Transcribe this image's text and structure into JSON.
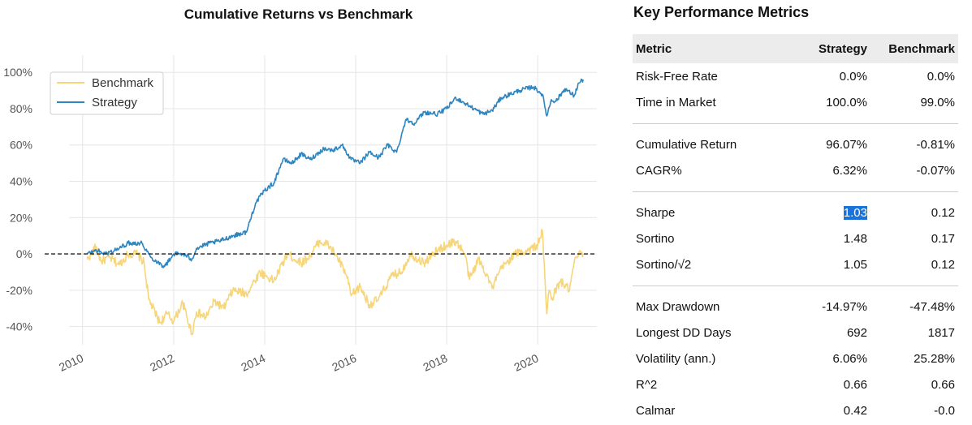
{
  "chart_data": {
    "type": "line",
    "title": "Cumulative Returns vs Benchmark",
    "x_ticks": [
      "2010",
      "2012",
      "2014",
      "2016",
      "2018",
      "2020"
    ],
    "y_ticks": [
      "100%",
      "80%",
      "60%",
      "40%",
      "20%",
      "0%",
      "-20%",
      "-40%"
    ],
    "ylim": [
      -0.5,
      1.05
    ],
    "xlim": [
      2009.7,
      2021.3
    ],
    "grid": true,
    "reference_line": 0,
    "legend_position": "top-left",
    "series": [
      {
        "name": "Benchmark",
        "color": "#f7d57a",
        "x": [
          2010.1,
          2010.3,
          2010.4,
          2010.6,
          2010.8,
          2011.0,
          2011.2,
          2011.35,
          2011.45,
          2011.7,
          2011.85,
          2012.0,
          2012.2,
          2012.4,
          2012.5,
          2012.7,
          2012.9,
          2013.1,
          2013.3,
          2013.6,
          2013.9,
          2014.2,
          2014.5,
          2014.8,
          2015.0,
          2015.2,
          2015.4,
          2015.6,
          2015.8,
          2015.9,
          2016.1,
          2016.3,
          2016.5,
          2016.8,
          2017.0,
          2017.2,
          2017.5,
          2017.8,
          2018.0,
          2018.2,
          2018.4,
          2018.5,
          2018.7,
          2018.9,
          2019.0,
          2019.2,
          2019.5,
          2019.8,
          2020.0,
          2020.1,
          2020.2,
          2020.25,
          2020.3,
          2020.5,
          2020.7,
          2020.8,
          2020.9,
          2021.0
        ],
        "values": [
          -0.03,
          0.04,
          -0.04,
          -0.02,
          -0.06,
          0.0,
          0.0,
          -0.05,
          -0.25,
          -0.38,
          -0.33,
          -0.37,
          -0.27,
          -0.44,
          -0.32,
          -0.35,
          -0.26,
          -0.3,
          -0.2,
          -0.22,
          -0.1,
          -0.15,
          0.0,
          -0.05,
          -0.01,
          0.07,
          0.05,
          -0.02,
          -0.12,
          -0.23,
          -0.18,
          -0.28,
          -0.25,
          -0.12,
          -0.1,
          0.0,
          -0.05,
          0.02,
          0.05,
          0.07,
          0.0,
          -0.14,
          -0.03,
          -0.12,
          -0.19,
          -0.08,
          0.0,
          0.02,
          0.05,
          0.13,
          -0.33,
          -0.2,
          -0.25,
          -0.15,
          -0.2,
          -0.05,
          0.0,
          0.0
        ]
      },
      {
        "name": "Strategy",
        "color": "#2e86c1",
        "x": [
          2010.1,
          2010.3,
          2010.5,
          2010.8,
          2011.0,
          2011.3,
          2011.5,
          2011.8,
          2012.0,
          2012.2,
          2012.4,
          2012.5,
          2012.8,
          2013.0,
          2013.3,
          2013.6,
          2013.8,
          2014.0,
          2014.2,
          2014.4,
          2014.6,
          2014.8,
          2015.0,
          2015.3,
          2015.5,
          2015.7,
          2015.9,
          2016.1,
          2016.3,
          2016.5,
          2016.7,
          2016.9,
          2017.1,
          2017.3,
          2017.5,
          2017.8,
          2018.0,
          2018.2,
          2018.4,
          2018.6,
          2018.8,
          2019.0,
          2019.2,
          2019.4,
          2019.6,
          2019.9,
          2020.1,
          2020.2,
          2020.3,
          2020.4,
          2020.6,
          2020.8,
          2020.9,
          2021.0
        ],
        "values": [
          0.0,
          0.02,
          0.0,
          0.03,
          0.06,
          0.06,
          -0.02,
          -0.07,
          0.0,
          0.0,
          -0.03,
          0.03,
          0.06,
          0.07,
          0.1,
          0.12,
          0.28,
          0.35,
          0.39,
          0.52,
          0.5,
          0.55,
          0.52,
          0.58,
          0.57,
          0.6,
          0.52,
          0.5,
          0.56,
          0.53,
          0.6,
          0.56,
          0.74,
          0.72,
          0.78,
          0.77,
          0.8,
          0.86,
          0.83,
          0.8,
          0.77,
          0.79,
          0.86,
          0.88,
          0.9,
          0.92,
          0.88,
          0.76,
          0.85,
          0.84,
          0.91,
          0.87,
          0.94,
          0.96
        ]
      }
    ]
  },
  "metrics": {
    "title": "Key Performance Metrics",
    "headers": [
      "Metric",
      "Strategy",
      "Benchmark"
    ],
    "groups": [
      [
        [
          "Risk-Free Rate",
          "0.0%",
          "0.0%"
        ],
        [
          "Time in Market",
          "100.0%",
          "99.0%"
        ]
      ],
      [
        [
          "Cumulative Return",
          "96.07%",
          "-0.81%"
        ],
        [
          "CAGR%",
          "6.32%",
          "-0.07%"
        ]
      ],
      [
        [
          "Sharpe",
          "1.03",
          "0.12"
        ],
        [
          "Sortino",
          "1.48",
          "0.17"
        ],
        [
          "Sortino/√2",
          "1.05",
          "0.12"
        ]
      ],
      [
        [
          "Max Drawdown",
          "-14.97%",
          "-47.48%"
        ],
        [
          "Longest DD Days",
          "692",
          "1817"
        ],
        [
          "Volatility (ann.)",
          "6.06%",
          "25.28%"
        ],
        [
          "R^2",
          "0.66",
          "0.66"
        ],
        [
          "Calmar",
          "0.42",
          "-0.0"
        ]
      ]
    ]
  }
}
